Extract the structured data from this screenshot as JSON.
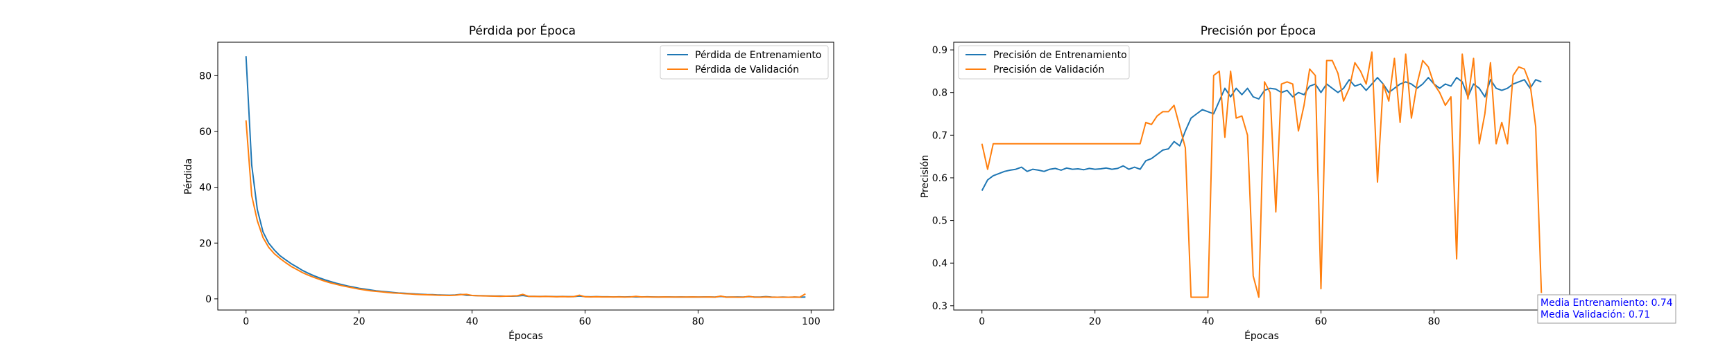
{
  "chart_data": [
    {
      "type": "line",
      "title": "Pérdida por Época",
      "xlabel": "Épocas",
      "ylabel": "Pérdida",
      "xlim": [
        -5,
        104
      ],
      "ylim": [
        -4,
        92
      ],
      "xticks": [
        0,
        20,
        40,
        60,
        80,
        100
      ],
      "yticks": [
        0,
        20,
        40,
        60,
        80
      ],
      "xtick_labels": [
        "0",
        "20",
        "40",
        "60",
        "80",
        "100"
      ],
      "ytick_labels": [
        "0",
        "20",
        "40",
        "60",
        "80"
      ],
      "grid": false,
      "legend_position": "top-right",
      "series": [
        {
          "name": "Pérdida de Entrenamiento",
          "color": "#1f77b4",
          "x": [
            0,
            1,
            2,
            3,
            4,
            5,
            6,
            7,
            8,
            9,
            10,
            11,
            12,
            13,
            14,
            15,
            16,
            17,
            18,
            19,
            20,
            21,
            22,
            23,
            24,
            25,
            26,
            27,
            28,
            29,
            30,
            31,
            32,
            33,
            34,
            35,
            36,
            37,
            38,
            39,
            40,
            41,
            42,
            43,
            44,
            45,
            46,
            47,
            48,
            49,
            50,
            51,
            52,
            53,
            54,
            55,
            56,
            57,
            58,
            59,
            60,
            61,
            62,
            63,
            64,
            65,
            66,
            67,
            68,
            69,
            70,
            71,
            72,
            73,
            74,
            75,
            76,
            77,
            78,
            79,
            80,
            81,
            82,
            83,
            84,
            85,
            86,
            87,
            88,
            89,
            90,
            91,
            92,
            93,
            94,
            95,
            96,
            97,
            98,
            99
          ],
          "values": [
            87,
            48,
            32,
            24,
            20,
            17.5,
            15.5,
            14,
            12.6,
            11.4,
            10.2,
            9.2,
            8.3,
            7.5,
            6.8,
            6.2,
            5.6,
            5.1,
            4.6,
            4.2,
            3.8,
            3.5,
            3.2,
            2.9,
            2.7,
            2.5,
            2.3,
            2.1,
            2.0,
            1.9,
            1.75,
            1.65,
            1.55,
            1.5,
            1.4,
            1.35,
            1.3,
            1.4,
            1.6,
            1.3,
            1.2,
            1.15,
            1.1,
            1.05,
            1.0,
            1.0,
            0.95,
            0.95,
            1.0,
            1.2,
            0.9,
            0.9,
            0.85,
            0.9,
            0.85,
            0.8,
            0.85,
            0.8,
            0.8,
            1.0,
            0.8,
            0.75,
            0.8,
            0.75,
            0.75,
            0.7,
            0.75,
            0.7,
            0.75,
            0.7,
            0.7,
            0.75,
            0.7,
            0.65,
            0.7,
            0.7,
            0.65,
            0.7,
            0.65,
            0.7,
            0.65,
            0.7,
            0.7,
            0.65,
            0.85,
            0.65,
            0.65,
            0.7,
            0.65,
            0.8,
            0.65,
            0.65,
            0.8,
            0.65,
            0.6,
            0.65,
            0.6,
            0.65,
            0.6,
            0.65
          ]
        },
        {
          "name": "Pérdida de Validación",
          "color": "#ff7f0e",
          "x": [
            0,
            1,
            2,
            3,
            4,
            5,
            6,
            7,
            8,
            9,
            10,
            11,
            12,
            13,
            14,
            15,
            16,
            17,
            18,
            19,
            20,
            21,
            22,
            23,
            24,
            25,
            26,
            27,
            28,
            29,
            30,
            31,
            32,
            33,
            34,
            35,
            36,
            37,
            38,
            39,
            40,
            41,
            42,
            43,
            44,
            45,
            46,
            47,
            48,
            49,
            50,
            51,
            52,
            53,
            54,
            55,
            56,
            57,
            58,
            59,
            60,
            61,
            62,
            63,
            64,
            65,
            66,
            67,
            68,
            69,
            70,
            71,
            72,
            73,
            74,
            75,
            76,
            77,
            78,
            79,
            80,
            81,
            82,
            83,
            84,
            85,
            86,
            87,
            88,
            89,
            90,
            91,
            92,
            93,
            94,
            95,
            96,
            97,
            98,
            99
          ],
          "values": [
            64,
            37,
            28,
            22,
            18.5,
            16.2,
            14.5,
            13,
            11.6,
            10.5,
            9.4,
            8.5,
            7.7,
            7.0,
            6.3,
            5.7,
            5.2,
            4.7,
            4.3,
            3.9,
            3.5,
            3.2,
            2.9,
            2.7,
            2.5,
            2.3,
            2.1,
            2.0,
            1.85,
            1.75,
            1.6,
            1.5,
            1.45,
            1.4,
            1.3,
            1.25,
            1.2,
            1.3,
            1.5,
            1.6,
            1.2,
            1.1,
            1.05,
            1.0,
            0.95,
            0.9,
            0.95,
            1.0,
            1.1,
            1.6,
            0.9,
            0.85,
            0.8,
            0.85,
            0.8,
            0.75,
            0.8,
            0.75,
            0.8,
            1.3,
            0.75,
            0.7,
            0.75,
            0.7,
            0.7,
            0.7,
            0.7,
            0.65,
            0.7,
            0.9,
            0.7,
            0.7,
            0.65,
            0.65,
            0.7,
            0.65,
            0.65,
            0.65,
            0.65,
            0.7,
            0.65,
            0.65,
            0.7,
            0.6,
            1.0,
            0.6,
            0.65,
            0.6,
            0.6,
            0.9,
            0.6,
            0.6,
            0.7,
            0.6,
            0.6,
            0.6,
            0.6,
            0.65,
            0.6,
            1.8
          ]
        }
      ]
    },
    {
      "type": "line",
      "title": "Precisión por Época",
      "xlabel": "Épocas",
      "ylabel": "Precisión",
      "xlim": [
        -5,
        104
      ],
      "ylim": [
        0.29,
        0.918
      ],
      "xticks": [
        0,
        20,
        40,
        60,
        80
      ],
      "yticks": [
        0.3,
        0.4,
        0.5,
        0.6,
        0.7,
        0.8,
        0.9
      ],
      "xtick_labels": [
        "0",
        "20",
        "40",
        "60",
        "80"
      ],
      "ytick_labels": [
        "0.3",
        "0.4",
        "0.5",
        "0.6",
        "0.7",
        "0.8",
        "0.9"
      ],
      "grid": false,
      "legend_position": "top-left",
      "series": [
        {
          "name": "Precisión de Entrenamiento",
          "color": "#1f77b4",
          "x": [
            0,
            1,
            2,
            3,
            4,
            5,
            6,
            7,
            8,
            9,
            10,
            11,
            12,
            13,
            14,
            15,
            16,
            17,
            18,
            19,
            20,
            21,
            22,
            23,
            24,
            25,
            26,
            27,
            28,
            29,
            30,
            31,
            32,
            33,
            34,
            35,
            36,
            37,
            38,
            39,
            40,
            41,
            42,
            43,
            44,
            45,
            46,
            47,
            48,
            49,
            50,
            51,
            52,
            53,
            54,
            55,
            56,
            57,
            58,
            59,
            60,
            61,
            62,
            63,
            64,
            65,
            66,
            67,
            68,
            69,
            70,
            71,
            72,
            73,
            74,
            75,
            76,
            77,
            78,
            79,
            80,
            81,
            82,
            83,
            84,
            85,
            86,
            87,
            88,
            89,
            90,
            91,
            92,
            93,
            94,
            95,
            96,
            97,
            98,
            99
          ],
          "values": [
            0.57,
            0.595,
            0.605,
            0.61,
            0.615,
            0.618,
            0.62,
            0.625,
            0.615,
            0.62,
            0.618,
            0.615,
            0.62,
            0.622,
            0.618,
            0.623,
            0.62,
            0.621,
            0.619,
            0.622,
            0.62,
            0.621,
            0.623,
            0.62,
            0.622,
            0.628,
            0.62,
            0.625,
            0.62,
            0.64,
            0.645,
            0.655,
            0.665,
            0.668,
            0.685,
            0.675,
            0.71,
            0.74,
            0.75,
            0.76,
            0.755,
            0.75,
            0.78,
            0.81,
            0.79,
            0.81,
            0.795,
            0.81,
            0.79,
            0.785,
            0.805,
            0.81,
            0.808,
            0.8,
            0.805,
            0.79,
            0.8,
            0.795,
            0.815,
            0.82,
            0.8,
            0.82,
            0.81,
            0.8,
            0.81,
            0.83,
            0.815,
            0.82,
            0.805,
            0.82,
            0.835,
            0.82,
            0.8,
            0.81,
            0.82,
            0.825,
            0.82,
            0.81,
            0.82,
            0.835,
            0.82,
            0.81,
            0.82,
            0.815,
            0.835,
            0.825,
            0.79,
            0.82,
            0.81,
            0.79,
            0.83,
            0.81,
            0.805,
            0.81,
            0.82,
            0.825,
            0.83,
            0.81,
            0.83,
            0.825
          ]
        },
        {
          "name": "Precisión de Validación",
          "color": "#ff7f0e",
          "x": [
            0,
            1,
            2,
            3,
            4,
            5,
            6,
            7,
            8,
            9,
            10,
            11,
            12,
            13,
            14,
            15,
            16,
            17,
            18,
            19,
            20,
            21,
            22,
            23,
            24,
            25,
            26,
            27,
            28,
            29,
            30,
            31,
            32,
            33,
            34,
            35,
            36,
            37,
            38,
            39,
            40,
            41,
            42,
            43,
            44,
            45,
            46,
            47,
            48,
            49,
            50,
            51,
            52,
            53,
            54,
            55,
            56,
            57,
            58,
            59,
            60,
            61,
            62,
            63,
            64,
            65,
            66,
            67,
            68,
            69,
            70,
            71,
            72,
            73,
            74,
            75,
            76,
            77,
            78,
            79,
            80,
            81,
            82,
            83,
            84,
            85,
            86,
            87,
            88,
            89,
            90,
            91,
            92,
            93,
            94,
            95,
            96,
            97,
            98,
            99
          ],
          "values": [
            0.68,
            0.62,
            0.68,
            0.68,
            0.68,
            0.68,
            0.68,
            0.68,
            0.68,
            0.68,
            0.68,
            0.68,
            0.68,
            0.68,
            0.68,
            0.68,
            0.68,
            0.68,
            0.68,
            0.68,
            0.68,
            0.68,
            0.68,
            0.68,
            0.68,
            0.68,
            0.68,
            0.68,
            0.68,
            0.73,
            0.725,
            0.745,
            0.755,
            0.755,
            0.77,
            0.72,
            0.67,
            0.32,
            0.32,
            0.32,
            0.32,
            0.84,
            0.85,
            0.695,
            0.85,
            0.74,
            0.745,
            0.7,
            0.37,
            0.32,
            0.825,
            0.8,
            0.52,
            0.82,
            0.825,
            0.82,
            0.71,
            0.77,
            0.855,
            0.84,
            0.34,
            0.875,
            0.875,
            0.845,
            0.78,
            0.81,
            0.87,
            0.85,
            0.82,
            0.895,
            0.59,
            0.82,
            0.78,
            0.88,
            0.73,
            0.89,
            0.74,
            0.82,
            0.875,
            0.86,
            0.82,
            0.8,
            0.77,
            0.79,
            0.41,
            0.89,
            0.785,
            0.88,
            0.68,
            0.75,
            0.87,
            0.68,
            0.73,
            0.68,
            0.84,
            0.86,
            0.855,
            0.82,
            0.72,
            0.33
          ]
        }
      ],
      "annotation": {
        "lines": [
          "Media Entrenamiento: 0.74",
          "Media Validación: 0.71"
        ],
        "color": "#0000ff"
      }
    }
  ]
}
